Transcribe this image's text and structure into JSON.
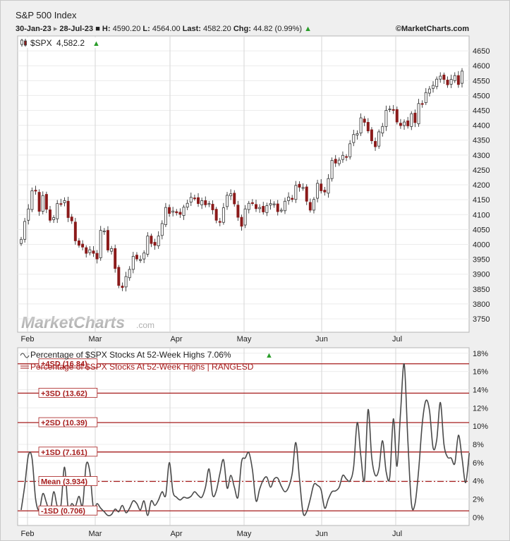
{
  "header": {
    "title": "S&P 500 Index",
    "date_from": "30-Jan-23",
    "date_to": "28-Jul-23",
    "sep": "▸",
    "h_label": "H:",
    "h_value": "4590.20",
    "l_label": "L:",
    "l_value": "4564.00",
    "last_label": "Last:",
    "last_value": "4582.20",
    "chg_label": "Chg:",
    "chg_value": "44.82 (0.99%)",
    "brand": "©MarketCharts.com"
  },
  "colors": {
    "up": "#2a9d2a",
    "down": "#8b1a1a",
    "candle_outline": "#333333",
    "line": "#4a4a4a",
    "band": "#a61c1c"
  },
  "top_panel": {
    "legend_symbol": "$SPX",
    "legend_value": "4,582.2",
    "watermark": "MarketCharts",
    "watermark_suffix": ".com"
  },
  "bottom_panel": {
    "legend1": "Percentage of $SPX Stocks At 52-Week Highs 7.06%",
    "legend2": "Percentage of $SPX Stocks At 52-Week Highs | RANGESD"
  },
  "chart_data": [
    {
      "type": "candlestick",
      "title": "$SPX",
      "x_labels": [
        "Feb",
        "Mar",
        "Apr",
        "May",
        "Jun",
        "Jul"
      ],
      "y_ticks": [
        3750,
        3800,
        3850,
        3900,
        3950,
        4000,
        4050,
        4100,
        4150,
        4200,
        4250,
        4300,
        4350,
        4400,
        4450,
        4500,
        4550,
        4600,
        4650
      ],
      "ylim": [
        3705,
        4700
      ],
      "close": [
        4017,
        4077,
        4119,
        4180,
        4179,
        4111,
        4164,
        4118,
        4081,
        4090,
        4137,
        4136,
        4147,
        4090,
        4079,
        4012,
        3997,
        3991,
        3970,
        3982,
        3970,
        3951,
        4047,
        4045,
        3981,
        3986,
        3919,
        3862,
        3855,
        3892,
        3916,
        3960,
        3951,
        3949,
        3971,
        4028,
        4003,
        3997,
        4028,
        4070,
        4124,
        4104,
        4112,
        4106,
        4101,
        4125,
        4138,
        4158,
        4155,
        4137,
        4147,
        4133,
        4137,
        4116,
        4081,
        4074,
        4123,
        4165,
        4170,
        4136,
        4091,
        4061,
        4119,
        4138,
        4138,
        4120,
        4124,
        4109,
        4130,
        4137,
        4136,
        4110,
        4115,
        4145,
        4159,
        4151,
        4198,
        4192,
        4191,
        4145,
        4115,
        4151,
        4205,
        4180,
        4176,
        4221,
        4282,
        4273,
        4283,
        4299,
        4294,
        4338,
        4369,
        4372,
        4425,
        4410,
        4381,
        4348,
        4328,
        4378,
        4396,
        4450,
        4455,
        4451,
        4411,
        4399,
        4411,
        4398,
        4439,
        4409,
        4473,
        4472,
        4510,
        4522,
        4534,
        4555,
        4565,
        4554,
        4536,
        4554,
        4567,
        4537,
        4582
      ],
      "ylabel": "",
      "xlabel": ""
    },
    {
      "type": "line",
      "title": "Percentage of $SPX Stocks At 52-Week Highs",
      "x_labels": [
        "Feb",
        "Mar",
        "Apr",
        "May",
        "Jun",
        "Jul"
      ],
      "y_ticks": [
        "0%",
        "2%",
        "4%",
        "6%",
        "8%",
        "10%",
        "12%",
        "14%",
        "16%",
        "18%"
      ],
      "ylim": [
        -0.9,
        18.6
      ],
      "last_value": 7.06,
      "values": [
        0.8,
        3.5,
        6.8,
        6.5,
        2.0,
        0.8,
        2.6,
        1.6,
        0.5,
        2.8,
        1.2,
        1.3,
        5.5,
        1.0,
        1.5,
        1.2,
        2.3,
        1.3,
        5.8,
        5.0,
        1.0,
        1.5,
        1.0,
        0.6,
        0.2,
        0.3,
        0.9,
        0.6,
        1.3,
        0.5,
        1.0,
        1.8,
        1.5,
        0.8,
        1.8,
        0.2,
        1.8,
        1.3,
        1.9,
        2.8,
        2.4,
        6.0,
        2.8,
        2.2,
        1.9,
        2.2,
        2.1,
        2.3,
        2.8,
        2.4,
        2.2,
        3.3,
        5.3,
        2.4,
        2.9,
        4.8,
        6.3,
        3.2,
        4.6,
        3.3,
        2.2,
        6.1,
        6.5,
        7.1,
        5.2,
        1.8,
        3.1,
        4.1,
        4.4,
        3.3,
        4.2,
        4.3,
        3.4,
        2.8,
        3.3,
        4.8,
        8.2,
        4.3,
        0.5,
        0.6,
        2.0,
        3.6,
        3.5,
        3.0,
        1.0,
        2.0,
        2.8,
        2.9,
        3.3,
        4.6,
        4.2,
        4.0,
        5.5,
        10.4,
        6.7,
        4.1,
        11.8,
        6.6,
        4.6,
        5.3,
        8.4,
        5.0,
        4.4,
        10.8,
        5.6,
        11.6,
        16.8,
        8.5,
        1.5,
        1.5,
        5.2,
        10.3,
        12.8,
        11.7,
        7.6,
        8.5,
        12.6,
        8.0,
        6.6,
        6.5,
        5.9,
        9.0,
        6.5,
        3.8,
        7.06
      ],
      "bands": [
        {
          "label": "+4SD (16.84)",
          "value": 16.84,
          "style": "solid"
        },
        {
          "label": "+3SD (13.62)",
          "value": 13.62,
          "style": "solid"
        },
        {
          "label": "+2SD (10.39)",
          "value": 10.39,
          "style": "solid"
        },
        {
          "label": "+1SD (7.161)",
          "value": 7.161,
          "style": "solid"
        },
        {
          "label": "Mean (3.934)",
          "value": 3.934,
          "style": "dashdot"
        },
        {
          "label": "-1SD (0.706)",
          "value": 0.706,
          "style": "solid"
        }
      ],
      "ylabel": "",
      "xlabel": ""
    }
  ]
}
